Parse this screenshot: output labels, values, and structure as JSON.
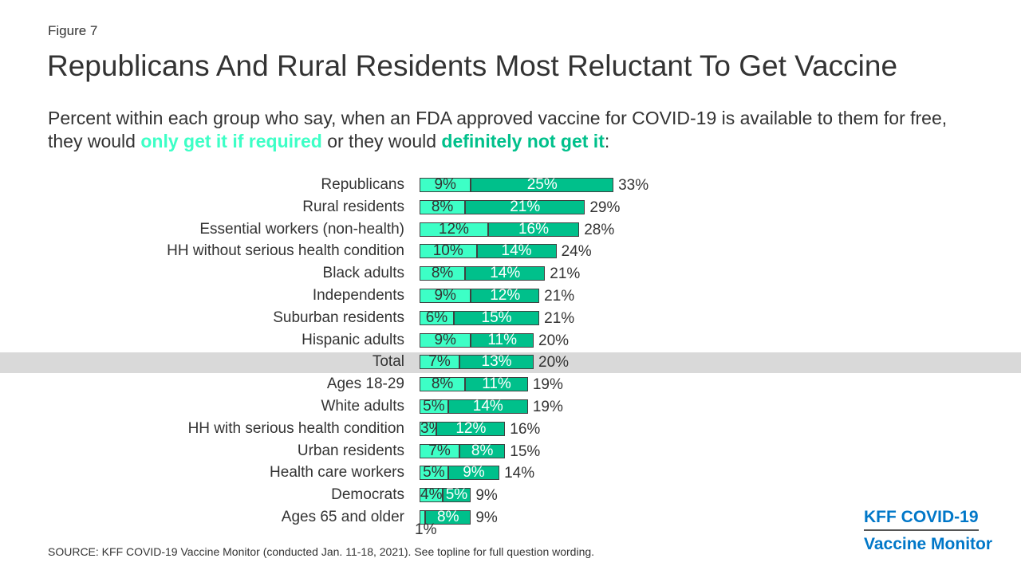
{
  "figure_label": "Figure 7",
  "title": "Republicans And Rural Residents Most Reluctant To Get Vaccine",
  "subtitle": {
    "pre": "Percent within each group who say, when an FDA approved vaccine for COVID-19 is available to them for free, they would ",
    "only": "only get it if required",
    "mid": " or they would ",
    "not": "definitely not get it",
    "post": ":"
  },
  "source": "SOURCE: KFF COVID-19 Vaccine Monitor (conducted Jan. 11-18, 2021). See topline for full question wording.",
  "logo": {
    "line1": "KFF COVID-19",
    "line2": "Vaccine Monitor"
  },
  "colors": {
    "only_if_required": "#3dffc6",
    "definitely_not": "#00c08b",
    "highlight": "#d9d9d9"
  },
  "chart_data": {
    "type": "bar",
    "orientation": "horizontal",
    "stacked": true,
    "categories": [
      "Republicans",
      "Rural residents",
      "Essential workers (non-health)",
      "HH without serious health condition",
      "Black adults",
      "Independents",
      "Suburban residents",
      "Hispanic adults",
      "Total",
      "Ages 18-29",
      "White adults",
      "HH with serious health condition",
      "Urban residents",
      "Health care workers",
      "Democrats",
      "Ages 65 and older"
    ],
    "series": [
      {
        "name": "Only get it if required",
        "values": [
          9,
          8,
          12,
          10,
          8,
          9,
          6,
          9,
          7,
          8,
          5,
          3,
          7,
          5,
          4,
          1
        ]
      },
      {
        "name": "Definitely not get it",
        "values": [
          25,
          21,
          16,
          14,
          14,
          12,
          15,
          11,
          13,
          11,
          14,
          12,
          8,
          9,
          5,
          8
        ]
      }
    ],
    "totals": [
      33,
      29,
      28,
      24,
      21,
      21,
      21,
      20,
      20,
      19,
      19,
      16,
      15,
      14,
      9,
      9
    ],
    "highlighted": "Total",
    "unit": "%"
  }
}
